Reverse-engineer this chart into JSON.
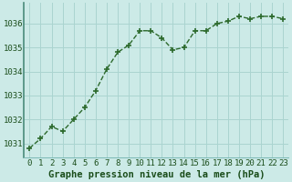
{
  "x": [
    0,
    1,
    2,
    3,
    4,
    5,
    6,
    7,
    8,
    9,
    10,
    11,
    12,
    13,
    14,
    15,
    16,
    17,
    18,
    19,
    20,
    21,
    22,
    23
  ],
  "y": [
    1030.8,
    1031.2,
    1031.7,
    1031.5,
    1032.0,
    1032.5,
    1033.2,
    1034.1,
    1034.8,
    1035.1,
    1035.7,
    1035.7,
    1035.4,
    1034.9,
    1035.0,
    1035.7,
    1035.7,
    1036.0,
    1036.1,
    1036.3,
    1036.2,
    1036.3,
    1036.3,
    1036.2
  ],
  "line_color": "#2d6a2d",
  "marker": "+",
  "marker_size": 5,
  "marker_lw": 1.2,
  "line_width": 1.0,
  "line_style": "--",
  "bg_color": "#cceae7",
  "grid_color": "#aad4d0",
  "xlabel": "Graphe pression niveau de la mer (hPa)",
  "xlabel_color": "#1a4d1a",
  "xlabel_fontsize": 7.5,
  "tick_color": "#1a4d1a",
  "tick_fontsize": 6.5,
  "ylim": [
    1030.4,
    1036.85
  ],
  "yticks": [
    1031,
    1032,
    1033,
    1034,
    1035,
    1036
  ],
  "xticks": [
    0,
    1,
    2,
    3,
    4,
    5,
    6,
    7,
    8,
    9,
    10,
    11,
    12,
    13,
    14,
    15,
    16,
    17,
    18,
    19,
    20,
    21,
    22,
    23
  ],
  "spine_color": "#7ab8b4",
  "left_spine_color": "#4a8a7a"
}
